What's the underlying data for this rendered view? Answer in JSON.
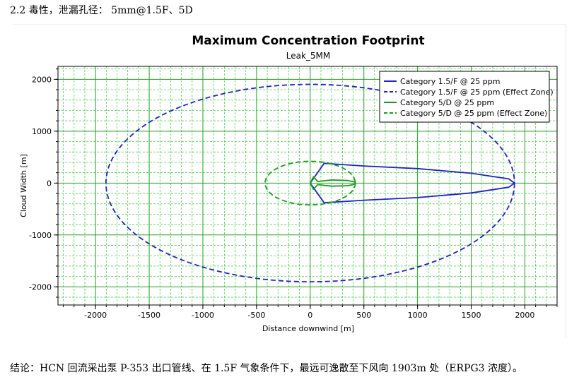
{
  "document": {
    "heading": "2.2 毒性，泄漏孔径： 5mm@1.5F、5D",
    "conclusion": "结论：HCN 回流采出泵 P-353 出口管线、在 1.5F 气象条件下，最远可逸散至下风向 1903m 处（ERPG3 浓度）。"
  },
  "chart_data": {
    "type": "line",
    "title": "Maximum Concentration Footprint",
    "subtitle": "Leak_5MM",
    "xlabel": "Distance downwind [m]",
    "ylabel": "Cloud Width [m]",
    "xlim": [
      -2350,
      2300
    ],
    "ylim": [
      -2350,
      2250
    ],
    "x_ticks": [
      -2000,
      -1500,
      -1000,
      -500,
      0,
      500,
      1000,
      1500,
      2000
    ],
    "y_ticks": [
      -2000,
      -1000,
      0,
      1000,
      2000
    ],
    "grid": true,
    "legend_position": "top-right",
    "colors": {
      "blue": "#1f1fcc",
      "green": "#1a9a1a",
      "grid_major": "#1aa61a",
      "grid_minor": "#33cc33"
    },
    "series": [
      {
        "name": "Category 1.5/F @ 25 ppm",
        "style": "solid",
        "color": "#1f1fcc",
        "points": [
          [
            0,
            0
          ],
          [
            130,
            380
          ],
          [
            500,
            330
          ],
          [
            1000,
            280
          ],
          [
            1500,
            190
          ],
          [
            1850,
            80
          ],
          [
            1903,
            0
          ],
          [
            1850,
            -80
          ],
          [
            1500,
            -190
          ],
          [
            1000,
            -280
          ],
          [
            500,
            -330
          ],
          [
            130,
            -380
          ],
          [
            0,
            0
          ]
        ]
      },
      {
        "name": "Category 1.5/F @ 25 ppm (Effect Zone)",
        "style": "dashed",
        "color": "#1f1fcc",
        "ellipse": {
          "x_min": -1903,
          "x_max": 1903,
          "y_max": 1903
        }
      },
      {
        "name": "Category 5/D @ 25 ppm",
        "style": "solid",
        "color": "#1a9a1a",
        "points": [
          [
            0,
            0
          ],
          [
            30,
            120
          ],
          [
            70,
            30
          ],
          [
            200,
            60
          ],
          [
            350,
            50
          ],
          [
            420,
            20
          ],
          [
            420,
            -20
          ],
          [
            350,
            -50
          ],
          [
            200,
            -60
          ],
          [
            70,
            -30
          ],
          [
            30,
            -120
          ],
          [
            0,
            0
          ]
        ]
      },
      {
        "name": "Category 5/D @ 25 ppm (Effect Zone)",
        "style": "dashed",
        "color": "#1a9a1a",
        "ellipse": {
          "x_min": -420,
          "x_max": 420,
          "y_max": 420
        }
      }
    ]
  }
}
